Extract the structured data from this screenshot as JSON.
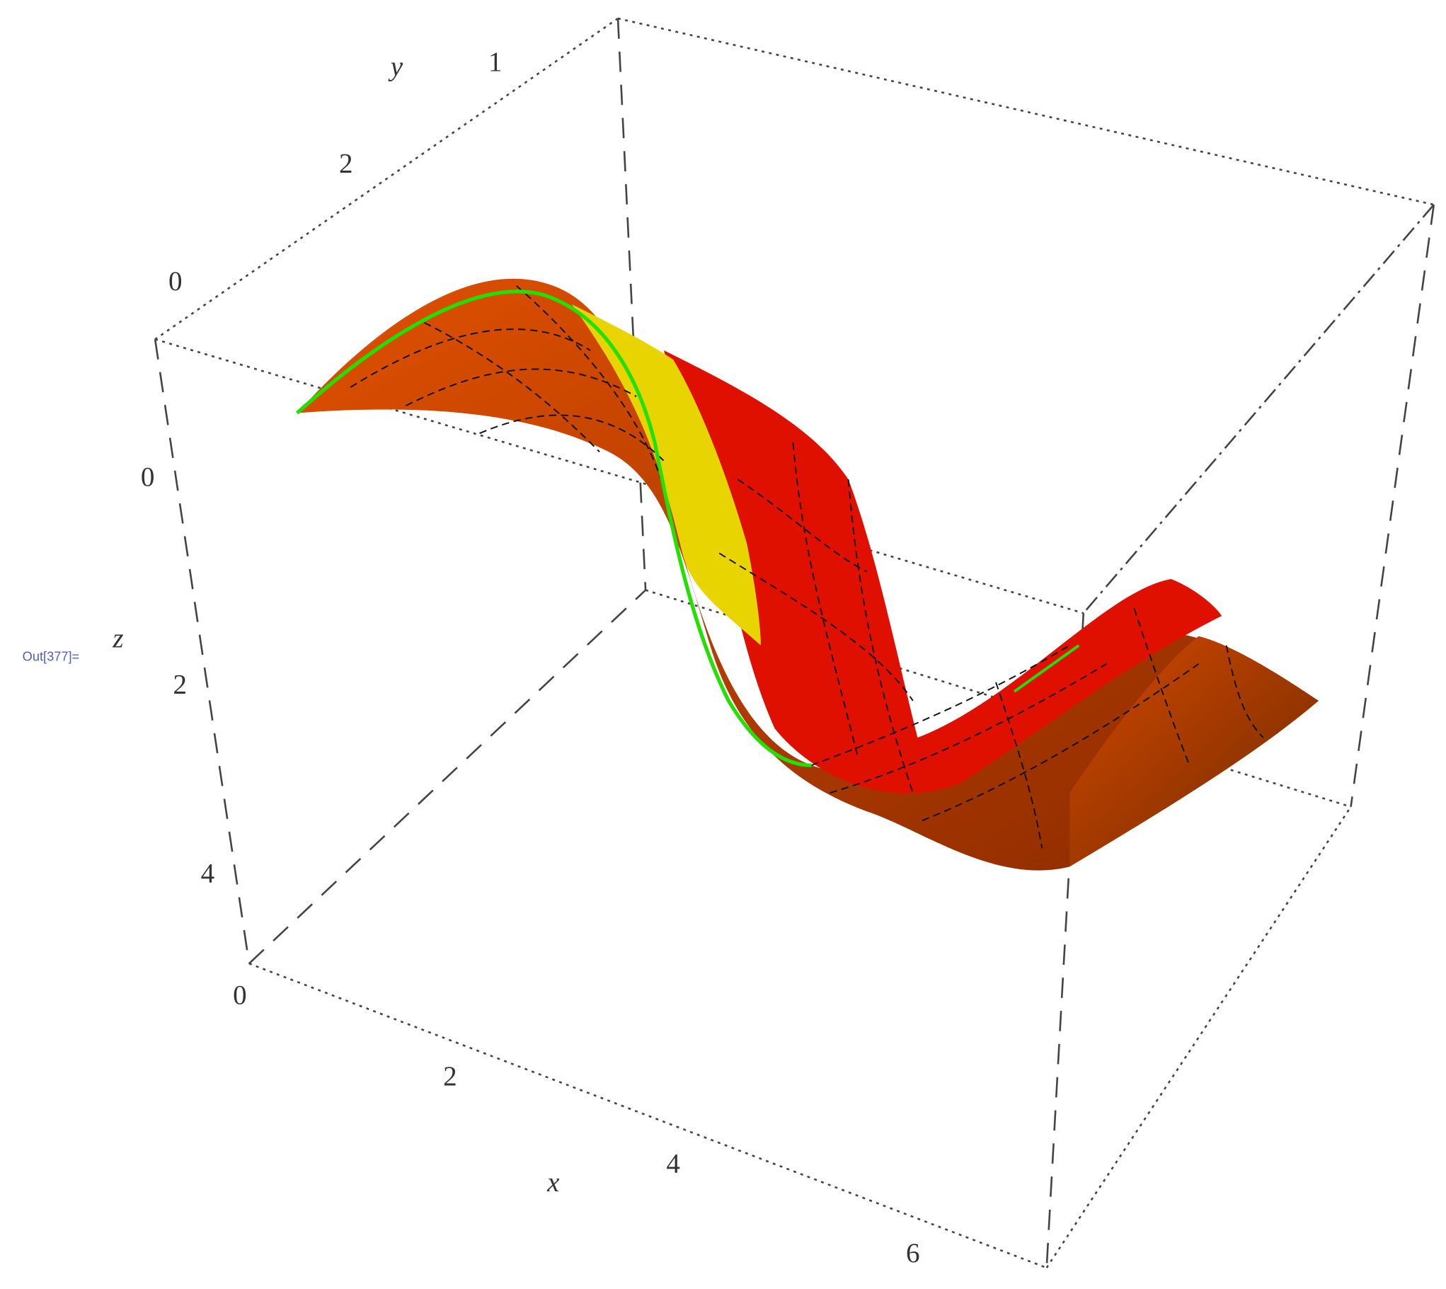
{
  "output_label": "Out[377]=",
  "plot": {
    "axes": {
      "x": {
        "label": "x",
        "ticks": [
          "0",
          "2",
          "4",
          "6"
        ]
      },
      "y": {
        "label": "y",
        "ticks": [
          "1",
          "2",
          "0"
        ]
      },
      "z": {
        "label": "z",
        "ticks": [
          "0",
          "2",
          "4"
        ]
      }
    }
  }
}
